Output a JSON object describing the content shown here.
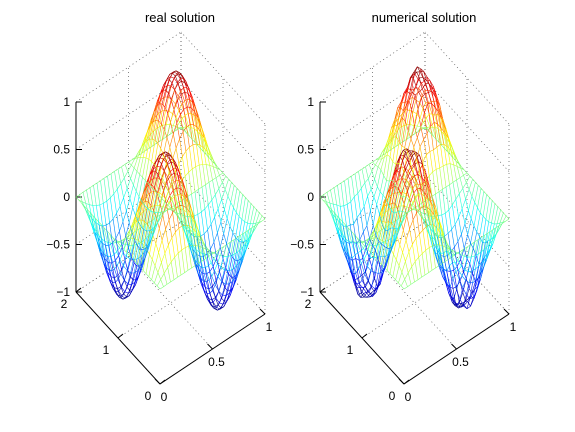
{
  "chart_data": [
    {
      "type": "surface",
      "title": "real solution",
      "surface": "sin(2*pi*x)*sin(pi*y)",
      "x_ticks": [
        "0",
        "0.5",
        "1"
      ],
      "y_ticks": [
        "0",
        "1",
        "2"
      ],
      "z_ticks": [
        "1",
        "0.5",
        "0",
        "−0.5",
        "−1"
      ],
      "xlim": [
        0,
        1
      ],
      "ylim": [
        0,
        2
      ],
      "zlim": [
        -1,
        1
      ],
      "mesh": [
        30,
        30
      ],
      "grid": true,
      "colormap": "jet"
    },
    {
      "type": "surface",
      "title": "numerical solution",
      "surface": "sin(2*pi*x)*sin(pi*y) with numerical error",
      "x_ticks": [
        "0",
        "0.5",
        "1"
      ],
      "y_ticks": [
        "0",
        "1",
        "2"
      ],
      "z_ticks": [
        "1",
        "0.5",
        "0",
        "−0.5",
        "−1"
      ],
      "xlim": [
        0,
        1
      ],
      "ylim": [
        0,
        2
      ],
      "zlim": [
        -1,
        1
      ],
      "mesh": [
        30,
        30
      ],
      "grid": true,
      "colormap": "jet"
    }
  ]
}
